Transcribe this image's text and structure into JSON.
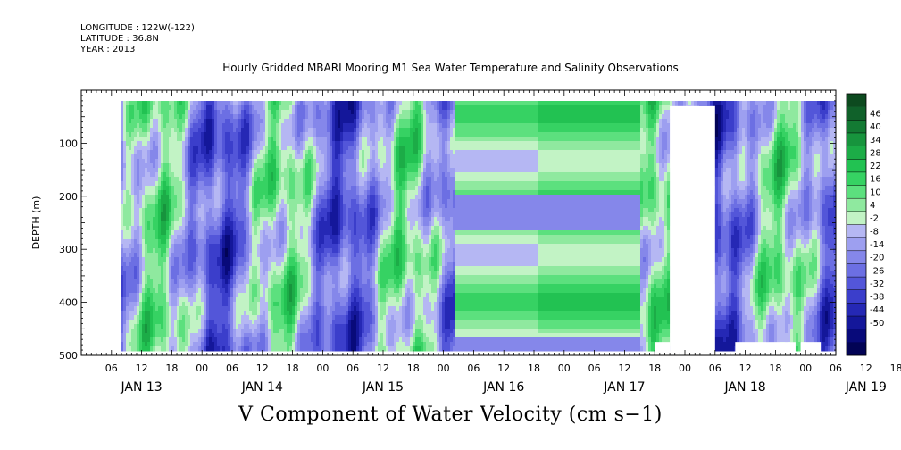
{
  "header": {
    "longitude": "LONGITUDE : 122W(-122)",
    "latitude": "LATITUDE : 36.8N",
    "year": "YEAR : 2013"
  },
  "title": "Hourly Gridded MBARI Mooring M1 Sea Water Temperature and Salinity Observations",
  "bottom_title": "V Component of Water Velocity (cm s−1)",
  "chart_data": {
    "type": "heatmap",
    "title": "Hourly Gridded MBARI Mooring M1 Sea Water Temperature and Salinity Observations",
    "xlabel": "",
    "ylabel": "DEPTH (m)",
    "zlabel": "V Component of Water Velocity (cm s−1)",
    "x_start": "2013-01-13T00:00",
    "x_end": "2013-01-19T06:00",
    "x_hour_ticks": [
      "06",
      "12",
      "18",
      "00",
      "06",
      "12",
      "18",
      "00",
      "06",
      "12",
      "18",
      "00",
      "06",
      "12",
      "18",
      "00",
      "06",
      "12",
      "18",
      "00",
      "06",
      "12",
      "18",
      "00",
      "06",
      "12",
      "18",
      "00",
      "06"
    ],
    "x_date_labels": [
      "JAN 13",
      "JAN 14",
      "JAN 15",
      "JAN 16",
      "JAN 17",
      "JAN 18",
      "JAN 19"
    ],
    "y_ticks": [
      "100",
      "200",
      "300",
      "400",
      "500"
    ],
    "ylim": [
      0,
      500
    ],
    "y_inverted": true,
    "colorbar_levels": [
      "46",
      "40",
      "34",
      "28",
      "22",
      "16",
      "10",
      "4",
      "-2",
      "-8",
      "-14",
      "-20",
      "-26",
      "-32",
      "-38",
      "-44",
      "-50"
    ],
    "colorbar_colors": [
      "#0d4a1f",
      "#10612a",
      "#137a33",
      "#17943d",
      "#1cac47",
      "#22c252",
      "#36d263",
      "#5ce07e",
      "#8fe99f",
      "#c2f3c5",
      "#b5b7f3",
      "#9d9ff0",
      "#8587ea",
      "#6c6fe3",
      "#5356d9",
      "#3b3ecb",
      "#2528b5",
      "#14179a",
      "#080a7a",
      "#020355"
    ],
    "missing_data": [
      {
        "from": "2013-01-17T21:00",
        "to": "2013-01-18T06:00",
        "depth_range": [
          30,
          500
        ]
      },
      {
        "from": "2013-01-17T18:00",
        "to": "2013-01-17T21:00",
        "depth_range": [
          475,
          500
        ]
      },
      {
        "from": "2013-01-18T10:00",
        "to": "2013-01-18T22:00",
        "depth_range": [
          475,
          500
        ]
      },
      {
        "from": "2013-01-18T23:00",
        "to": "2013-01-19T03:00",
        "depth_range": [
          475,
          500
        ]
      }
    ],
    "description_pattern": "blue/green banded fields of V velocity vs time (Jan 13-19 2013) and depth (0-500 m)"
  }
}
